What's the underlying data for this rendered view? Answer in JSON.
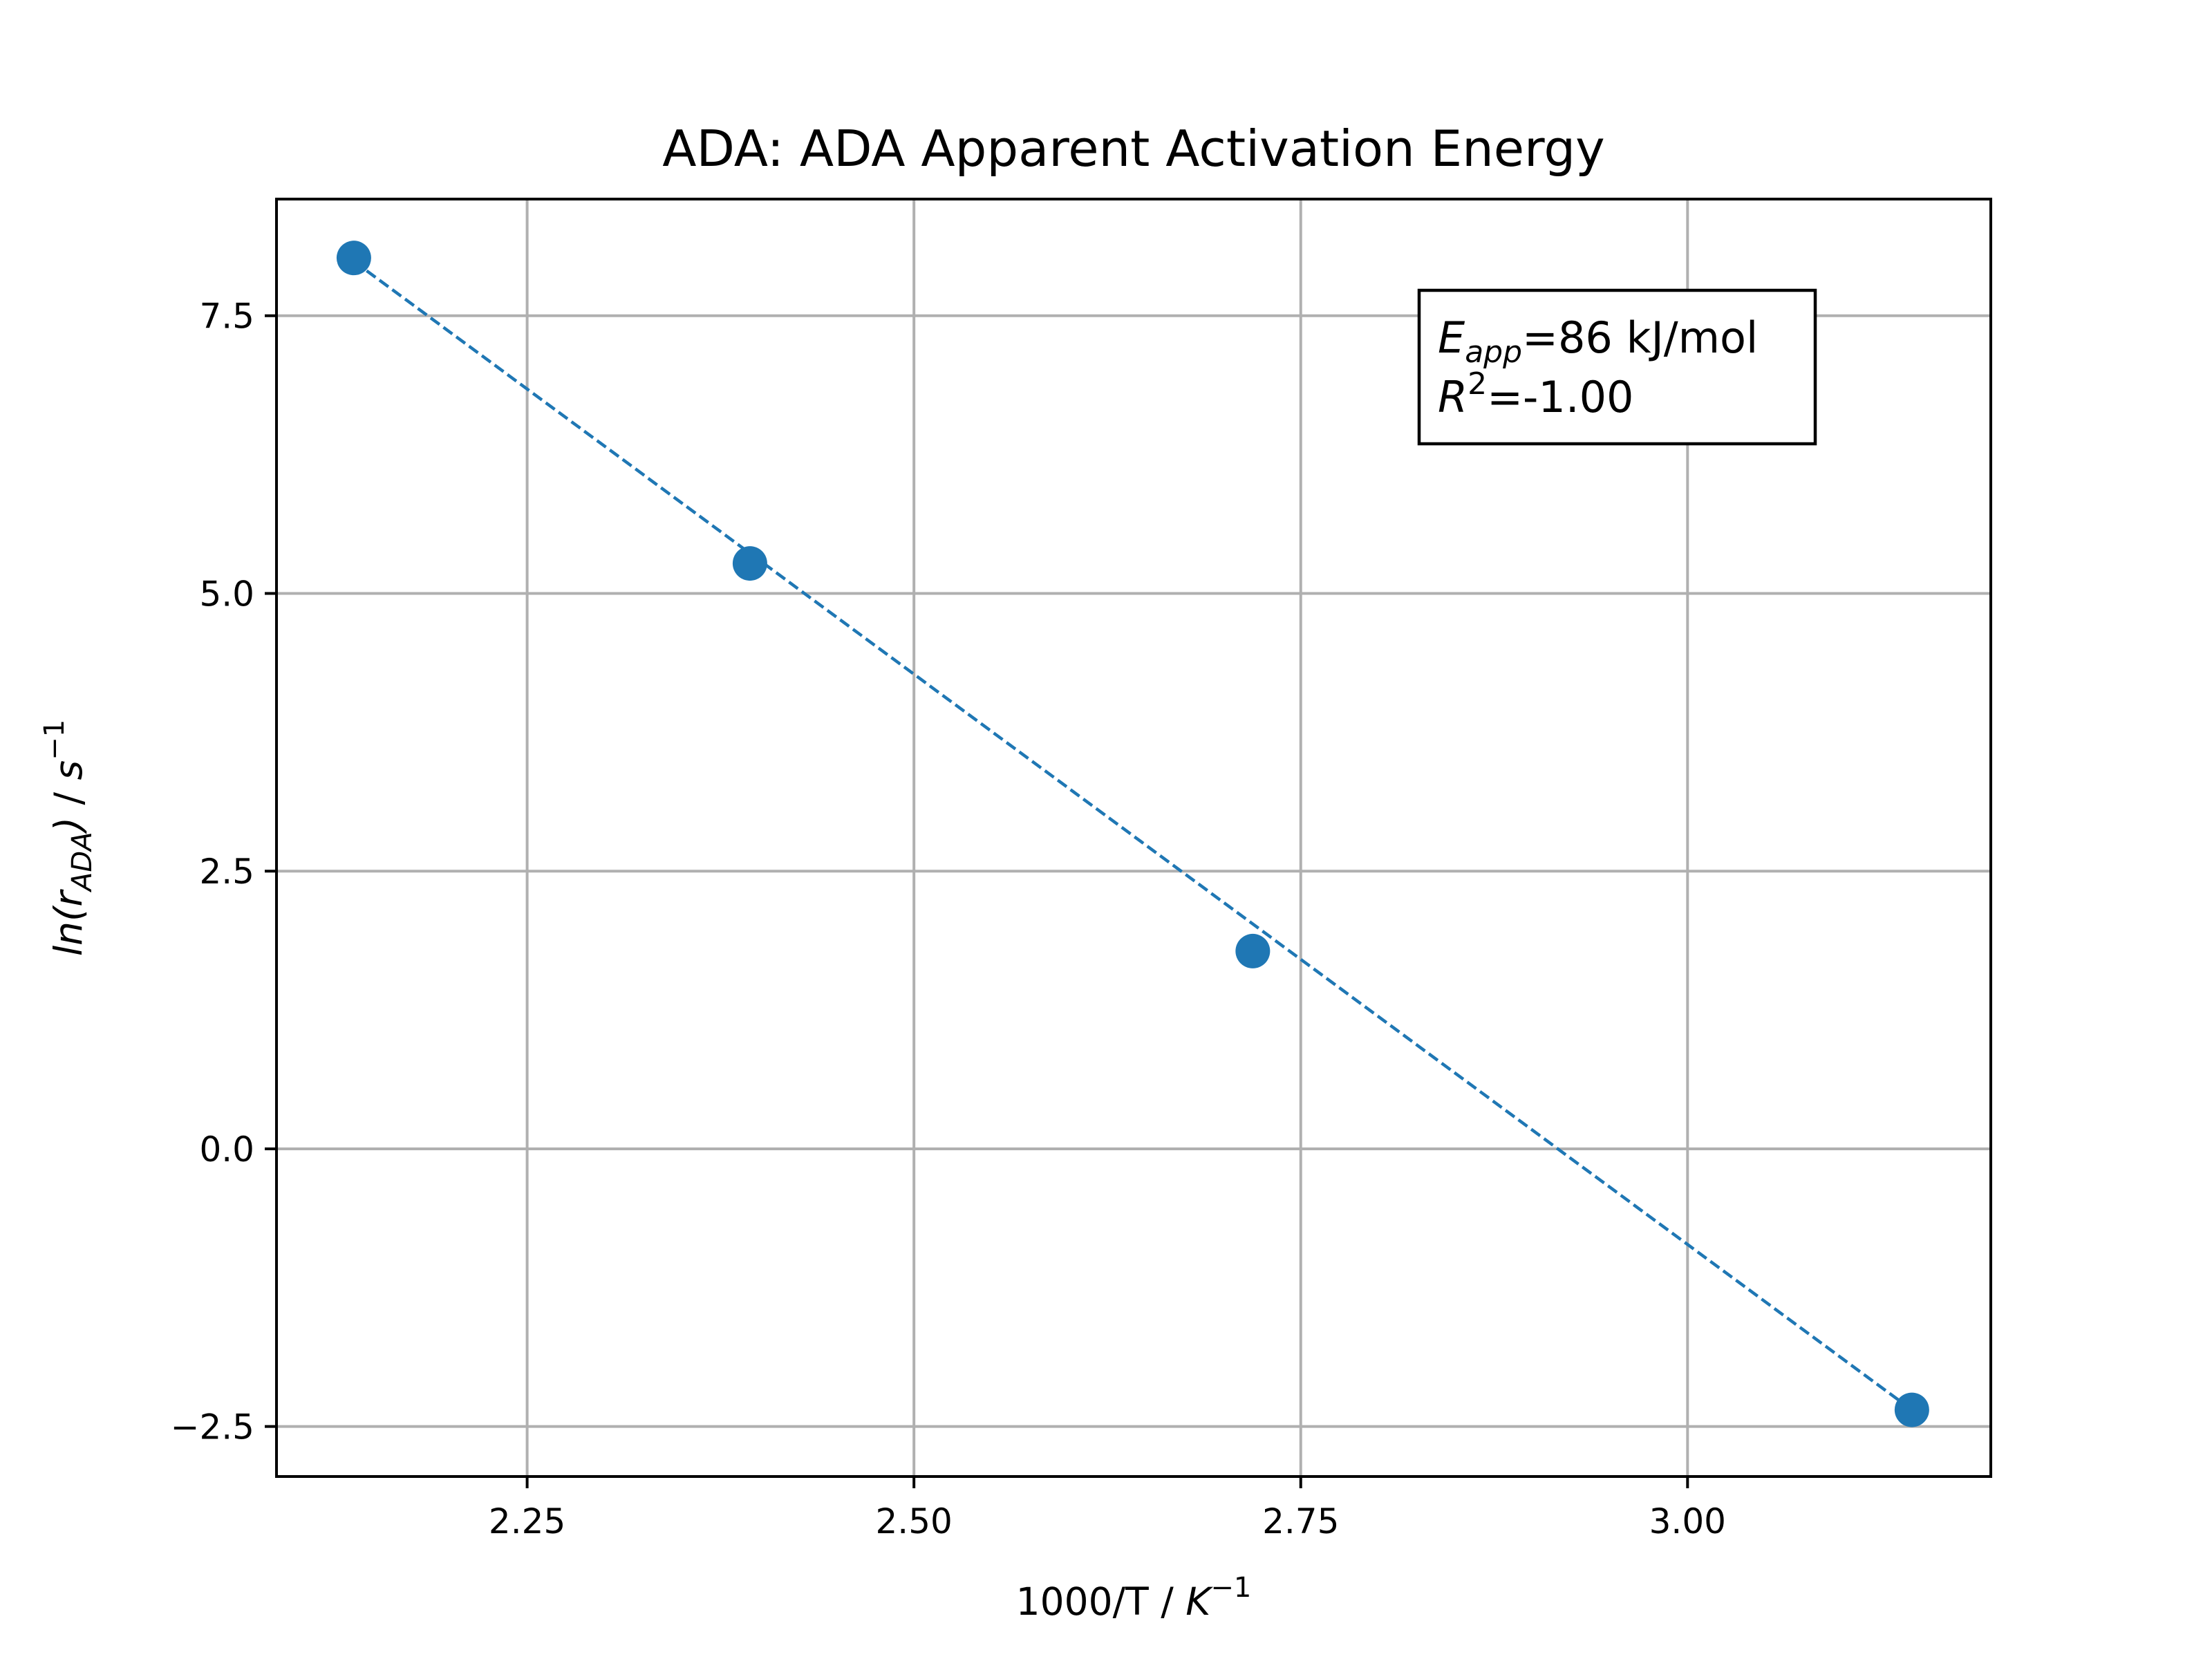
{
  "chart_data": {
    "type": "scatter",
    "title": "ADA: ADA Apparent Activation Energy",
    "xlabel": {
      "prefix": "1000/T / ",
      "var": "K",
      "sup": "−1"
    },
    "ylabel": {
      "var1": "ln(",
      "var2": "r",
      "sub": "ADA",
      "var3": ")",
      "mid": " / ",
      "var4": "s",
      "sup": "−1"
    },
    "xlim": [
      2.088,
      3.196
    ],
    "ylim": [
      -2.95,
      8.55
    ],
    "xticks": [
      {
        "value": 2.25,
        "label": "2.25"
      },
      {
        "value": 2.5,
        "label": "2.50"
      },
      {
        "value": 2.75,
        "label": "2.75"
      },
      {
        "value": 3.0,
        "label": "3.00"
      }
    ],
    "yticks": [
      {
        "value": -2.5,
        "label": "−2.5"
      },
      {
        "value": 0.0,
        "label": "0.0"
      },
      {
        "value": 2.5,
        "label": "2.5"
      },
      {
        "value": 5.0,
        "label": "5.0"
      },
      {
        "value": 7.5,
        "label": "7.5"
      }
    ],
    "grid": true,
    "series": [
      {
        "marker": "circle",
        "color": "#1f77b4",
        "x": [
          2.138,
          2.394,
          2.719,
          3.145
        ],
        "y": [
          8.02,
          5.27,
          1.78,
          -2.35
        ]
      }
    ],
    "fit_line": {
      "style": "dashed",
      "color": "#1f77b4",
      "x": [
        2.138,
        3.145
      ],
      "y": [
        7.99,
        -2.35
      ]
    },
    "annotation": {
      "line1_var": "E",
      "line1_sub": "app",
      "line1_rest": "=86 kJ/mol",
      "line2_var": "R",
      "line2_sup": "2",
      "line2_rest": "=-1.00",
      "position": "top-right"
    }
  }
}
